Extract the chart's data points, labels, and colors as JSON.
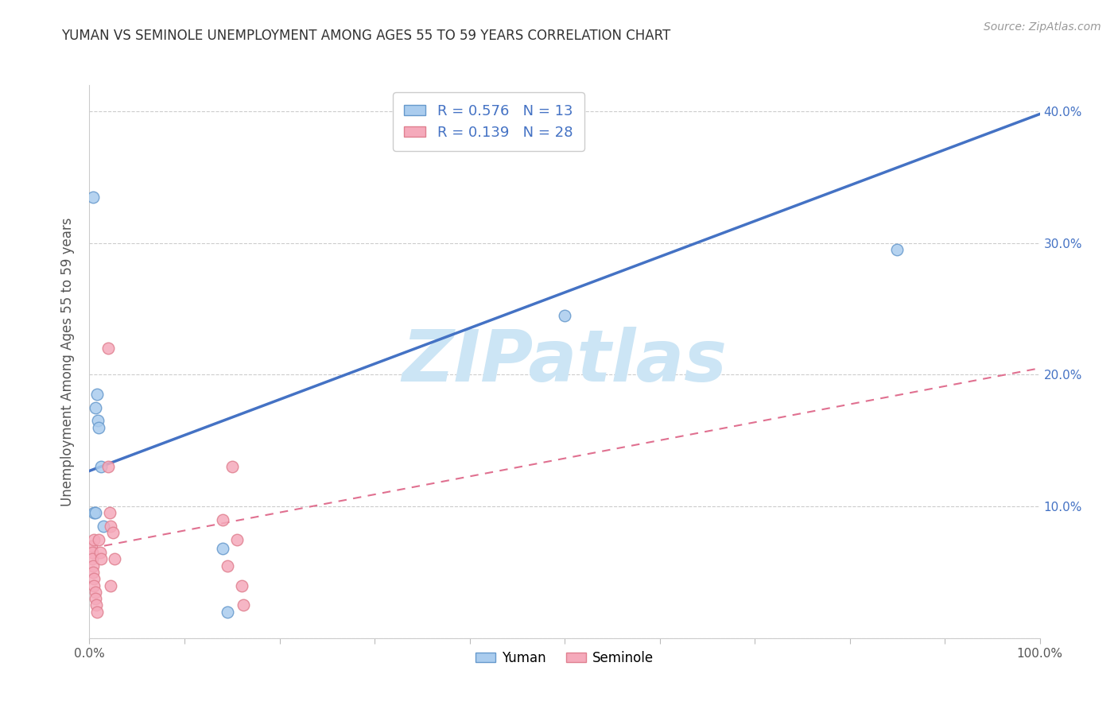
{
  "title": "YUMAN VS SEMINOLE UNEMPLOYMENT AMONG AGES 55 TO 59 YEARS CORRELATION CHART",
  "source": "Source: ZipAtlas.com",
  "ylabel": "Unemployment Among Ages 55 to 59 years",
  "xlim": [
    0,
    1.0
  ],
  "ylim": [
    0,
    0.42
  ],
  "xticks": [
    0.0,
    0.1,
    0.2,
    0.3,
    0.4,
    0.5,
    0.6,
    0.7,
    0.8,
    0.9,
    1.0
  ],
  "xticklabels": [
    "0.0%",
    "",
    "",
    "",
    "",
    "",
    "",
    "",
    "",
    "",
    "100.0%"
  ],
  "yticks": [
    0.0,
    0.1,
    0.2,
    0.3,
    0.4
  ],
  "right_yticklabels": [
    "",
    "10.0%",
    "20.0%",
    "30.0%",
    "40.0%"
  ],
  "yuman_x": [
    0.004,
    0.006,
    0.008,
    0.009,
    0.01,
    0.012,
    0.015,
    0.14,
    0.145,
    0.5,
    0.85,
    0.005,
    0.006
  ],
  "yuman_y": [
    0.335,
    0.175,
    0.185,
    0.165,
    0.16,
    0.13,
    0.085,
    0.068,
    0.02,
    0.245,
    0.295,
    0.095,
    0.095
  ],
  "seminole_x": [
    0.002,
    0.003,
    0.003,
    0.004,
    0.004,
    0.005,
    0.005,
    0.005,
    0.006,
    0.006,
    0.007,
    0.008,
    0.01,
    0.011,
    0.012,
    0.02,
    0.02,
    0.021,
    0.022,
    0.022,
    0.025,
    0.026,
    0.14,
    0.145,
    0.15,
    0.155,
    0.16,
    0.162
  ],
  "seminole_y": [
    0.07,
    0.065,
    0.06,
    0.055,
    0.05,
    0.075,
    0.045,
    0.04,
    0.035,
    0.03,
    0.025,
    0.02,
    0.075,
    0.065,
    0.06,
    0.22,
    0.13,
    0.095,
    0.085,
    0.04,
    0.08,
    0.06,
    0.09,
    0.055,
    0.13,
    0.075,
    0.04,
    0.025
  ],
  "yuman_line_x0": 0.0,
  "yuman_line_y0": 0.127,
  "yuman_line_x1": 1.0,
  "yuman_line_y1": 0.398,
  "seminole_line_x0": 0.0,
  "seminole_line_y0": 0.068,
  "seminole_line_x1": 1.0,
  "seminole_line_y1": 0.205,
  "yuman_R": 0.576,
  "yuman_N": 13,
  "seminole_R": 0.139,
  "seminole_N": 28,
  "yuman_scatter_color": "#aaccee",
  "seminole_scatter_color": "#f5aabb",
  "yuman_edge_color": "#6699cc",
  "seminole_edge_color": "#e08090",
  "yuman_line_color": "#4472c4",
  "seminole_line_color": "#e07090",
  "legend_label_yuman": "Yuman",
  "legend_label_seminole": "Seminole",
  "watermark_text": "ZIPatlas",
  "watermark_color": "#cce5f5",
  "background_color": "#ffffff",
  "grid_color": "#cccccc",
  "title_color": "#333333",
  "source_color": "#999999",
  "tick_color": "#4472c4"
}
